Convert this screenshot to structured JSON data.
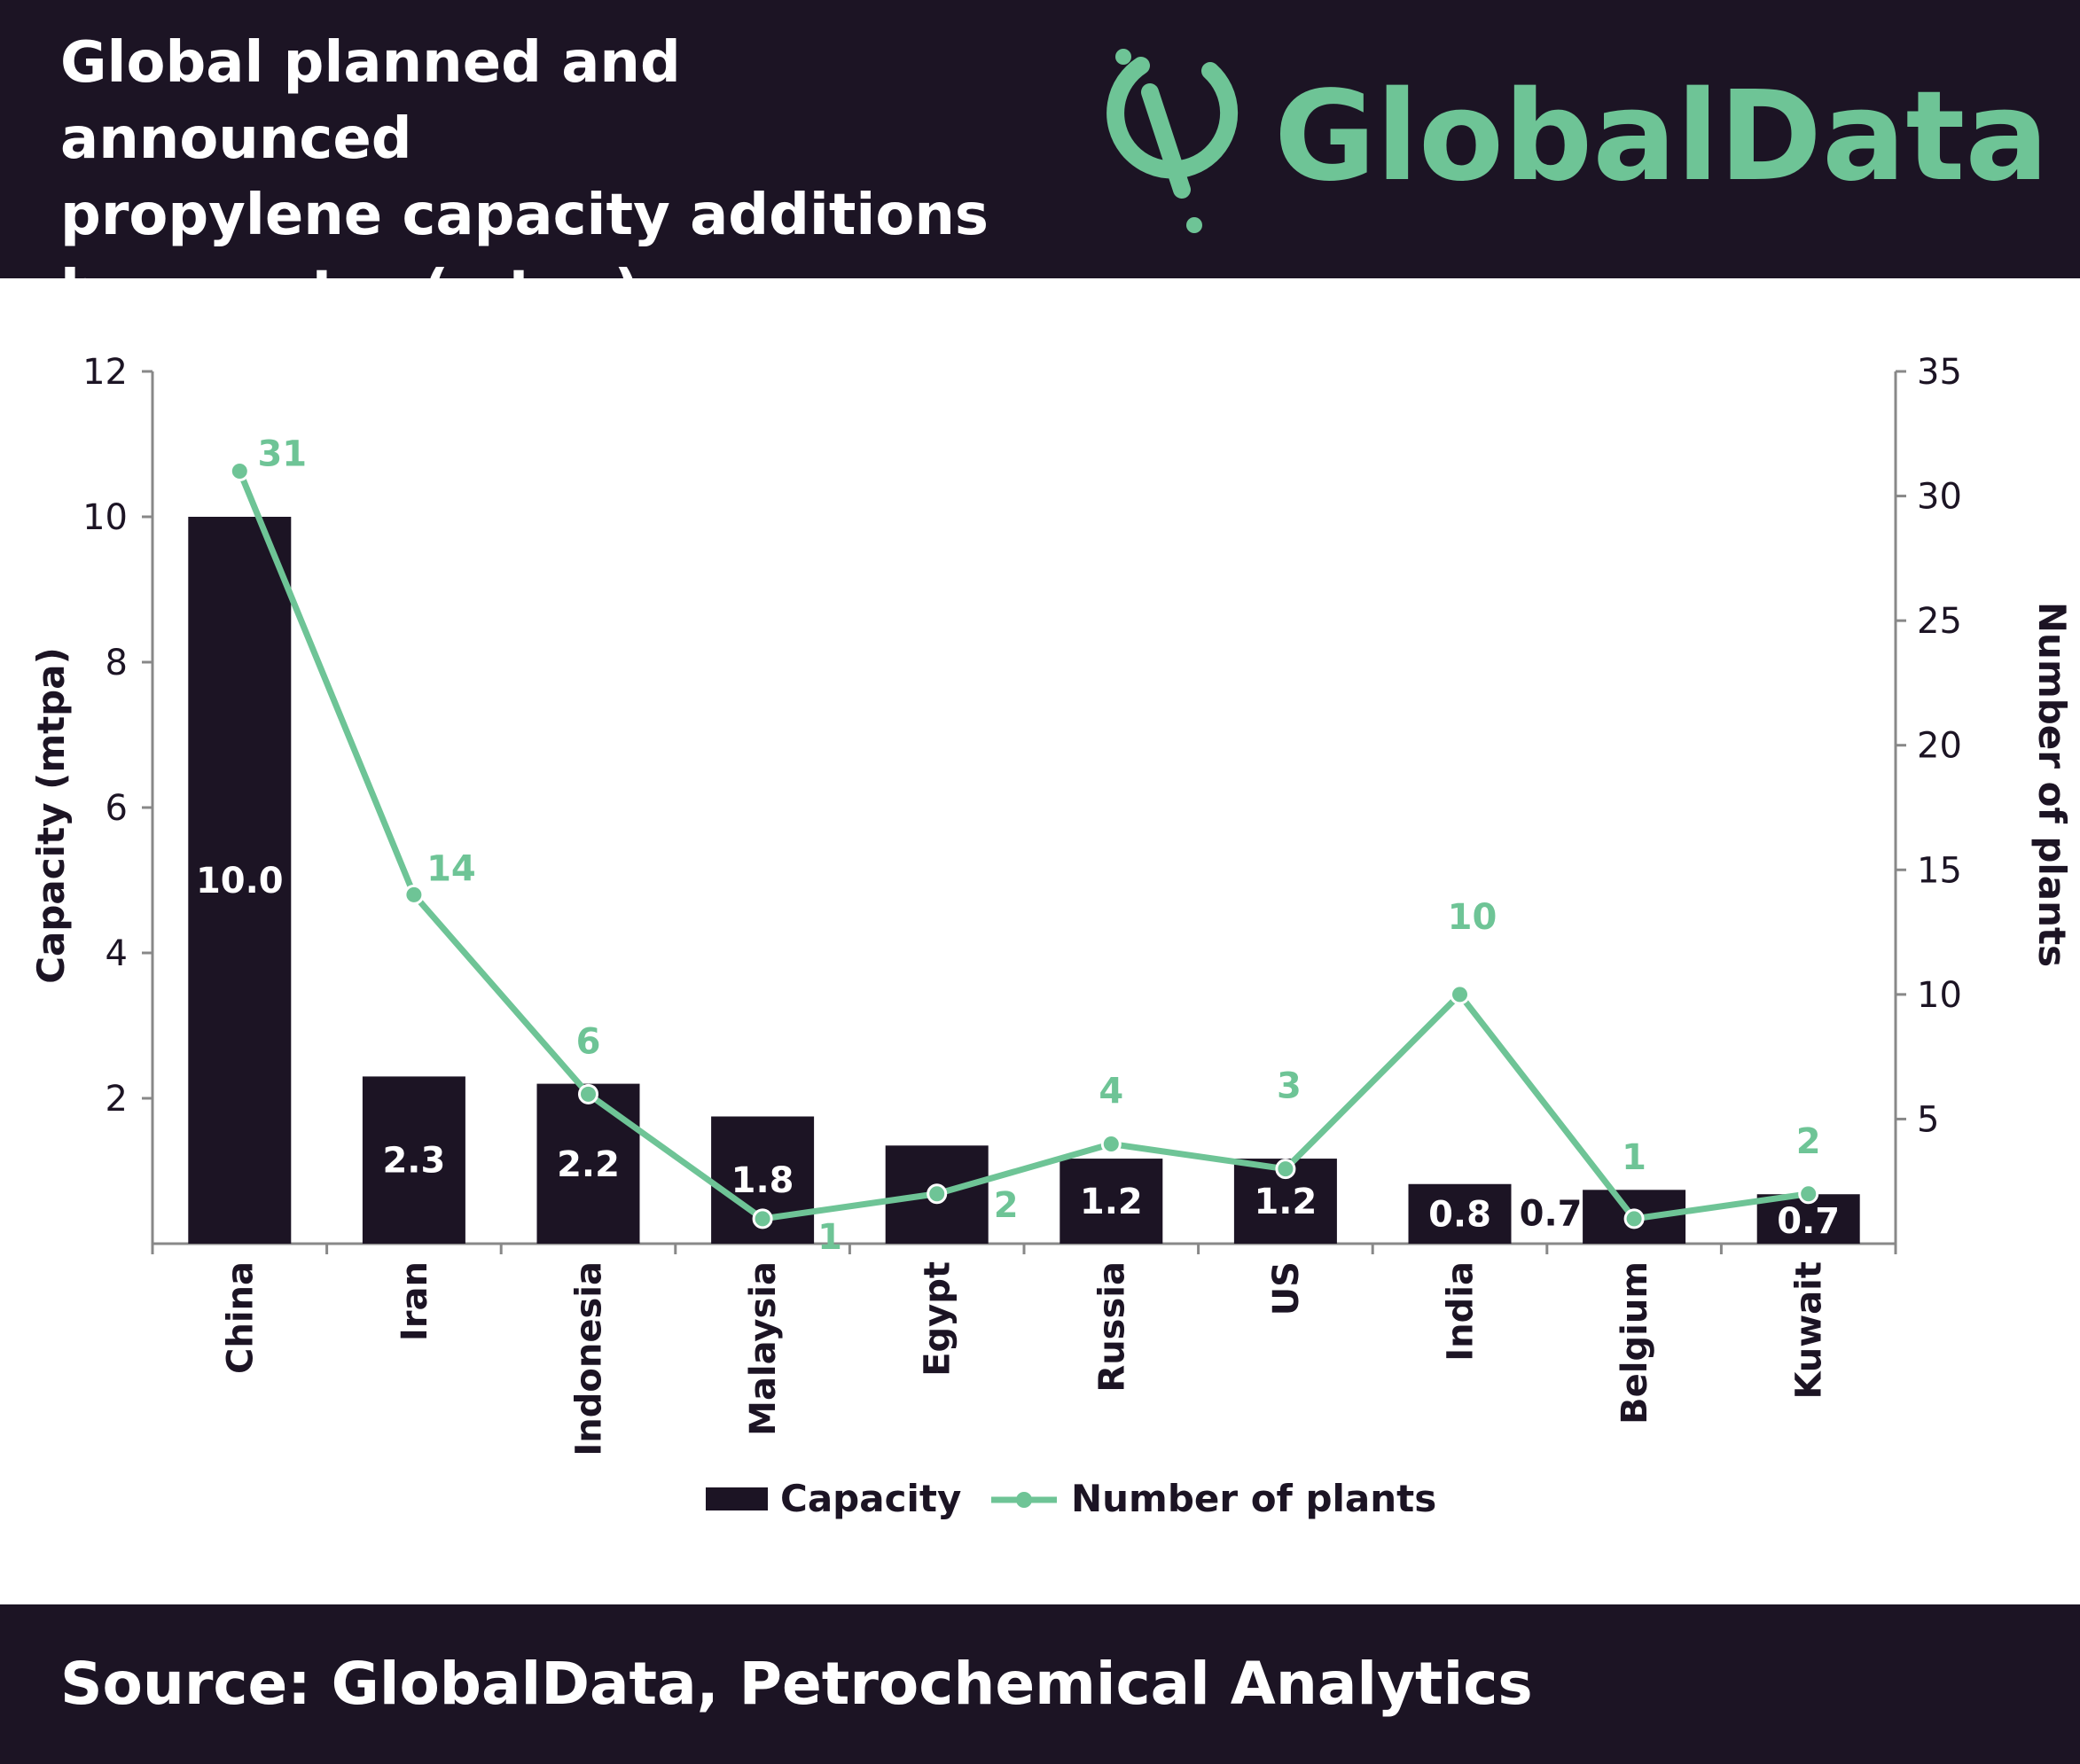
{
  "header": {
    "title_lines": [
      "Global planned and announced",
      "propylene capacity additions",
      "by country (mtpa)"
    ],
    "logo_text": "GlobalData."
  },
  "footer": {
    "source": "Source: GlobalData, Petrochemical Analytics"
  },
  "colors": {
    "dark": "#1c1424",
    "green": "#6ec496",
    "white": "#ffffff"
  },
  "chart_data": {
    "type": "bar",
    "title": "Global planned and announced propylene capacity additions by country (mtpa)",
    "categories": [
      "China",
      "Iran",
      "Indonesia",
      "Malaysia",
      "Egypt",
      "Russia",
      "US",
      "India",
      "Belgium",
      "Kuwait"
    ],
    "series": [
      {
        "name": "Capacity",
        "type": "bar",
        "axis": "left",
        "values": [
          10.0,
          2.3,
          2.2,
          1.75,
          1.35,
          1.17,
          1.17,
          0.82,
          0.74,
          0.68
        ],
        "data_labels": [
          "10.0",
          "2.3",
          "2.2",
          "1.8",
          "",
          "1.2",
          "1.2",
          "0.8",
          "0.7",
          "0.7"
        ]
      },
      {
        "name": "Number of plants",
        "type": "line",
        "axis": "right",
        "values": [
          31,
          14,
          6,
          1,
          2,
          4,
          3,
          10,
          1,
          2
        ],
        "data_labels": [
          "31",
          "14",
          "6",
          "1",
          "2",
          "4",
          "3",
          "10",
          "1",
          "2"
        ]
      }
    ],
    "ylabel": "Capacity (mtpa)",
    "y2label": "Number of plants",
    "ylim": [
      0,
      12
    ],
    "y2lim": [
      0,
      35
    ],
    "yticks": [
      2,
      4,
      6,
      8,
      10,
      12
    ],
    "y2ticks": [
      5,
      10,
      15,
      20,
      25,
      30,
      35
    ],
    "legend": [
      "Capacity",
      "Number of plants"
    ],
    "legend_position": "bottom",
    "grid": false
  }
}
